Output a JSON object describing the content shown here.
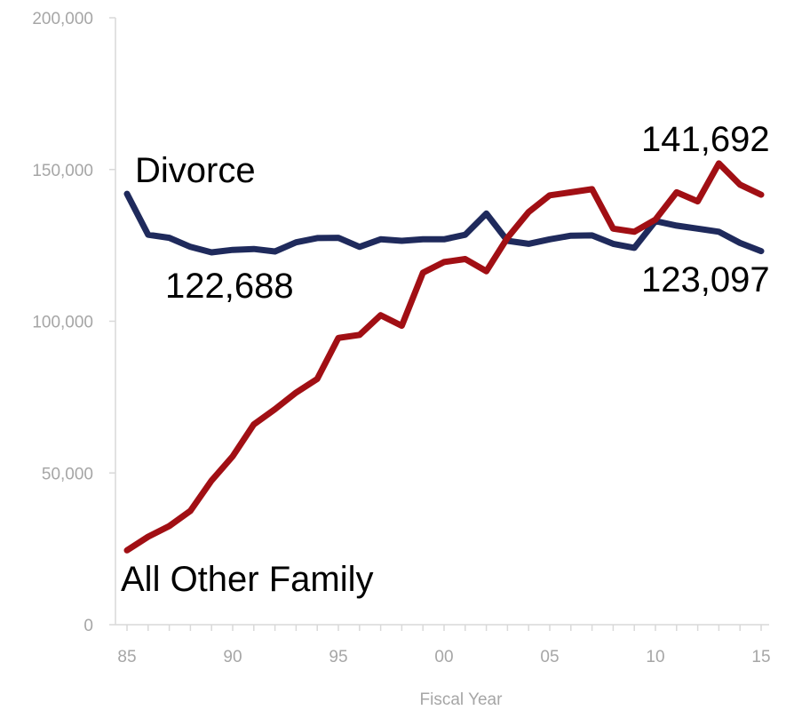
{
  "chart_data": {
    "type": "line",
    "xlabel": "Fiscal Year",
    "ylabel": "",
    "ylim": [
      0,
      200000
    ],
    "xlim": [
      1985,
      2015
    ],
    "y_ticks": [
      0,
      50000,
      100000,
      150000,
      200000
    ],
    "y_tick_labels": [
      "0",
      "50,000",
      "100,000",
      "150,000",
      "200,000"
    ],
    "x_ticks": [
      1985,
      1990,
      1995,
      2000,
      2005,
      2010,
      2015
    ],
    "x_tick_labels": [
      "85",
      "90",
      "95",
      "00",
      "05",
      "10",
      "15"
    ],
    "grid": false,
    "x": [
      1985,
      1986,
      1987,
      1988,
      1989,
      1990,
      1991,
      1992,
      1993,
      1994,
      1995,
      1996,
      1997,
      1998,
      1999,
      2000,
      2001,
      2002,
      2003,
      2004,
      2005,
      2006,
      2007,
      2008,
      2009,
      2010,
      2011,
      2012,
      2013,
      2014,
      2015
    ],
    "series": [
      {
        "name": "Divorce",
        "color": "#1f2a5c",
        "values": [
          142000,
          128500,
          127500,
          124500,
          122688,
          123500,
          123800,
          123000,
          126000,
          127400,
          127500,
          124500,
          127000,
          126500,
          127000,
          127000,
          128500,
          135500,
          126500,
          125500,
          127000,
          128200,
          128300,
          125500,
          124200,
          133000,
          131500,
          130500,
          129500,
          125800,
          123097
        ]
      },
      {
        "name": "All Other Family",
        "color": "#a10f14",
        "values": [
          24500,
          29000,
          32500,
          37500,
          47500,
          55500,
          66000,
          71000,
          76500,
          81000,
          94500,
          95500,
          102000,
          98500,
          116000,
          119500,
          120500,
          116500,
          127500,
          136000,
          141500,
          142500,
          143500,
          130500,
          129500,
          133500,
          142500,
          139500,
          152000,
          145000,
          141692
        ]
      }
    ],
    "annotations": [
      {
        "text": "Divorce",
        "series": "Divorce"
      },
      {
        "text": "122,688",
        "series": "Divorce",
        "x": 1989
      },
      {
        "text": "123,097",
        "series": "Divorce",
        "x": 2015
      },
      {
        "text": "141,692",
        "series": "All Other Family",
        "x": 2015
      },
      {
        "text": "All Other Family",
        "series": "All Other Family"
      }
    ]
  }
}
